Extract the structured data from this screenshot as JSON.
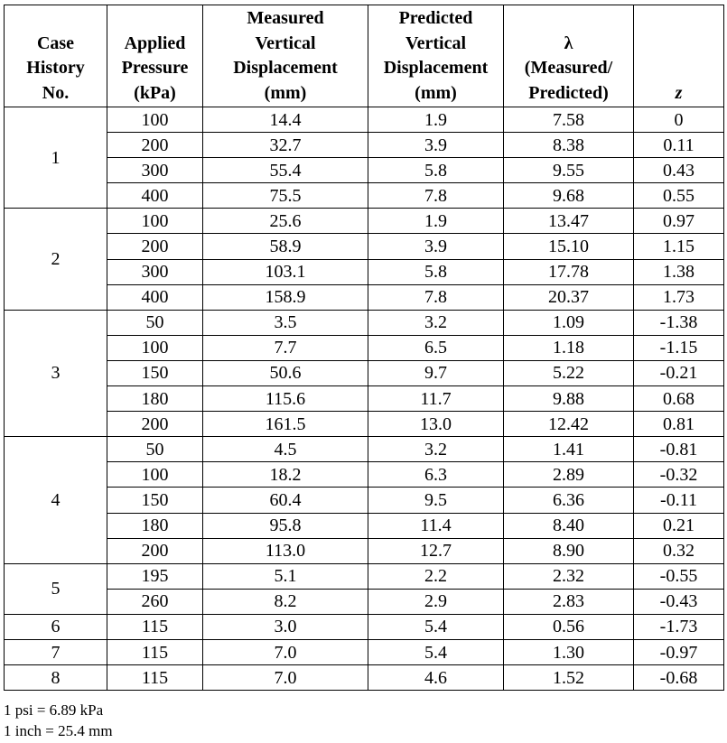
{
  "table": {
    "header": [
      {
        "lines": [
          "Case",
          "History",
          "No."
        ]
      },
      {
        "lines": [
          "Applied",
          "Pressure",
          "(kPa)"
        ]
      },
      {
        "lines": [
          "Measured",
          "Vertical",
          "Displacement",
          "(mm)"
        ]
      },
      {
        "lines": [
          "Predicted",
          "Vertical",
          "Displacement",
          "(mm)"
        ]
      },
      {
        "lines": [
          "λ",
          "(Measured/",
          "Predicted)"
        ]
      },
      {
        "lines": [
          "z"
        ]
      }
    ],
    "groups": [
      {
        "case": "1",
        "rows": [
          [
            "100",
            "14.4",
            "1.9",
            "7.58",
            "0"
          ],
          [
            "200",
            "32.7",
            "3.9",
            "8.38",
            "0.11"
          ],
          [
            "300",
            "55.4",
            "5.8",
            "9.55",
            "0.43"
          ],
          [
            "400",
            "75.5",
            "7.8",
            "9.68",
            "0.55"
          ]
        ]
      },
      {
        "case": "2",
        "rows": [
          [
            "100",
            "25.6",
            "1.9",
            "13.47",
            "0.97"
          ],
          [
            "200",
            "58.9",
            "3.9",
            "15.10",
            "1.15"
          ],
          [
            "300",
            "103.1",
            "5.8",
            "17.78",
            "1.38"
          ],
          [
            "400",
            "158.9",
            "7.8",
            "20.37",
            "1.73"
          ]
        ]
      },
      {
        "case": "3",
        "rows": [
          [
            "50",
            "3.5",
            "3.2",
            "1.09",
            "-1.38"
          ],
          [
            "100",
            "7.7",
            "6.5",
            "1.18",
            "-1.15"
          ],
          [
            "150",
            "50.6",
            "9.7",
            "5.22",
            "-0.21"
          ],
          [
            "180",
            "115.6",
            "11.7",
            "9.88",
            "0.68"
          ],
          [
            "200",
            "161.5",
            "13.0",
            "12.42",
            "0.81"
          ]
        ]
      },
      {
        "case": "4",
        "rows": [
          [
            "50",
            "4.5",
            "3.2",
            "1.41",
            "-0.81"
          ],
          [
            "100",
            "18.2",
            "6.3",
            "2.89",
            "-0.32"
          ],
          [
            "150",
            "60.4",
            "9.5",
            "6.36",
            "-0.11"
          ],
          [
            "180",
            "95.8",
            "11.4",
            "8.40",
            "0.21"
          ],
          [
            "200",
            "113.0",
            "12.7",
            "8.90",
            "0.32"
          ]
        ]
      },
      {
        "case": "5",
        "rows": [
          [
            "195",
            "5.1",
            "2.2",
            "2.32",
            "-0.55"
          ],
          [
            "260",
            "8.2",
            "2.9",
            "2.83",
            "-0.43"
          ]
        ]
      },
      {
        "case": "6",
        "rows": [
          [
            "115",
            "3.0",
            "5.4",
            "0.56",
            "-1.73"
          ]
        ]
      },
      {
        "case": "7",
        "rows": [
          [
            "115",
            "7.0",
            "5.4",
            "1.30",
            "-0.97"
          ]
        ]
      },
      {
        "case": "8",
        "rows": [
          [
            "115",
            "7.0",
            "4.6",
            "1.52",
            "-0.68"
          ]
        ]
      }
    ]
  },
  "footnotes": [
    "1 psi = 6.89 kPa",
    "1 inch = 25.4 mm"
  ]
}
